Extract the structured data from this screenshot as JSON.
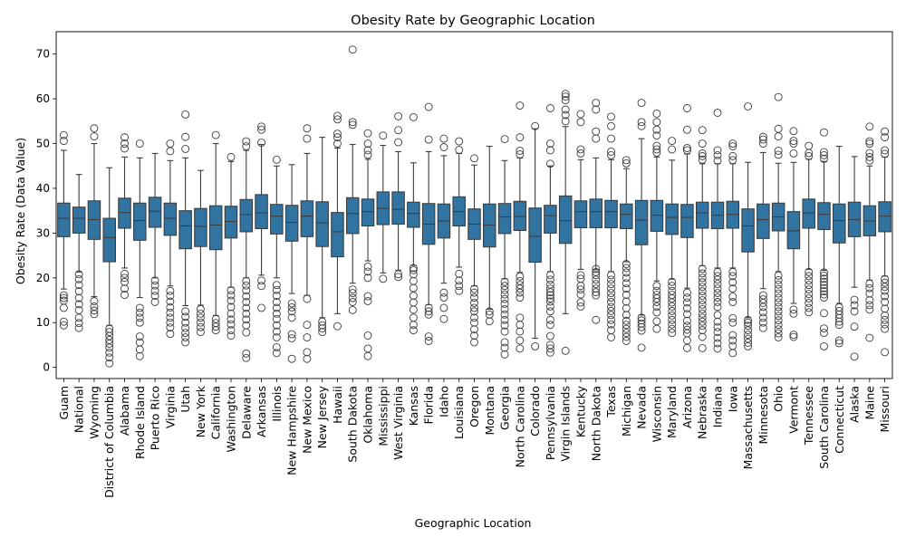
{
  "chart_data": {
    "type": "box",
    "title": "Obesity Rate by Geographic Location",
    "xlabel": "Geographic Location",
    "ylabel": "Obesity Rate (Data Value)",
    "ylim": [
      -2.5,
      75
    ],
    "yticks": [
      0,
      10,
      20,
      30,
      40,
      50,
      60,
      70
    ],
    "grid": false,
    "color": "#3274a1",
    "categories": [
      "Guam",
      "National",
      "Wyoming",
      "District of Columbia",
      "Alabama",
      "Rhode Island",
      "Puerto Rico",
      "Virginia",
      "Utah",
      "New York",
      "California",
      "Washington",
      "Delaware",
      "Arkansas",
      "Illinois",
      "New Hampshire",
      "New Mexico",
      "New Jersey",
      "Hawaii",
      "South Dakota",
      "Oklahoma",
      "Mississippi",
      "West Virginia",
      "Kansas",
      "Florida",
      "Idaho",
      "Louisiana",
      "Oregon",
      "Montana",
      "Georgia",
      "North Carolina",
      "Colorado",
      "Pennsylvania",
      "Virgin Islands",
      "Kentucky",
      "North Dakota",
      "Texas",
      "Michigan",
      "Nevada",
      "Wisconsin",
      "Maryland",
      "Arizona",
      "Nebraska",
      "Indiana",
      "Iowa",
      "Massachusetts",
      "Minnesota",
      "Ohio",
      "Vermont",
      "Tennessee",
      "South Carolina",
      "Connecticut",
      "Alaska",
      "Maine",
      "Missouri"
    ],
    "boxes": [
      {
        "q1": 29.2,
        "median": 33.3,
        "q3": 36.7,
        "whislo": 17.5,
        "whishi": 48.5,
        "fliers": [
          9.4,
          10.2,
          13.3,
          14.9,
          15.5,
          16.1,
          50.6,
          51.9
        ]
      },
      {
        "q1": 30.0,
        "median": 33.3,
        "q3": 35.8,
        "whislo": 21.3,
        "whishi": 43.1,
        "fliers": [
          8.8,
          9.9,
          11.1,
          12.8,
          14.1,
          15.5,
          17.0,
          18.4,
          19.7,
          20.8
        ]
      },
      {
        "q1": 28.6,
        "median": 33.0,
        "q3": 37.2,
        "whislo": 15.8,
        "whishi": 50.0,
        "fliers": [
          11.9,
          12.7,
          13.6,
          14.8,
          51.6,
          53.4
        ]
      },
      {
        "q1": 23.6,
        "median": 29.0,
        "q3": 33.3,
        "whislo": 9.4,
        "whishi": 44.6,
        "fliers": [
          0.9,
          2.2,
          3.3,
          4.4,
          5.3,
          6.1,
          7.0,
          7.9,
          8.6
        ]
      },
      {
        "q1": 31.1,
        "median": 34.6,
        "q3": 37.8,
        "whislo": 22.2,
        "whishi": 47.0,
        "fliers": [
          16.2,
          17.6,
          19.1,
          20.0,
          20.9,
          48.9,
          50.0,
          51.4
        ]
      },
      {
        "q1": 28.4,
        "median": 32.8,
        "q3": 36.7,
        "whislo": 15.6,
        "whishi": 46.8,
        "fliers": [
          2.5,
          4.0,
          5.6,
          6.9,
          10.0,
          11.1,
          12.2,
          13.3,
          50.0
        ]
      },
      {
        "q1": 31.3,
        "median": 34.9,
        "q3": 38.0,
        "whislo": 20.0,
        "whishi": 47.8,
        "fliers": [
          14.6,
          16.0,
          17.1,
          18.3,
          19.4
        ]
      },
      {
        "q1": 29.5,
        "median": 33.3,
        "q3": 36.7,
        "whislo": 18.2,
        "whishi": 46.2,
        "fliers": [
          7.5,
          8.9,
          10.0,
          11.1,
          12.2,
          13.4,
          14.7,
          16.0,
          17.1,
          48.3,
          50.0
        ]
      },
      {
        "q1": 26.5,
        "median": 31.6,
        "q3": 35.0,
        "whislo": 13.8,
        "whishi": 46.8,
        "fliers": [
          5.6,
          6.7,
          7.7,
          8.8,
          10.0,
          11.3,
          12.5,
          48.8,
          51.5,
          56.5
        ]
      },
      {
        "q1": 27.0,
        "median": 31.5,
        "q3": 35.5,
        "whislo": 13.9,
        "whishi": 44.0,
        "fliers": [
          7.9,
          9.0,
          10.0,
          11.1,
          12.0,
          13.0
        ]
      },
      {
        "q1": 26.3,
        "median": 31.8,
        "q3": 36.1,
        "whislo": 11.6,
        "whishi": 50.0,
        "fliers": [
          8.3,
          9.1,
          9.9,
          10.8,
          51.9
        ]
      },
      {
        "q1": 28.9,
        "median": 32.6,
        "q3": 36.0,
        "whislo": 17.9,
        "whishi": 46.0,
        "fliers": [
          7.1,
          8.3,
          9.6,
          10.7,
          12.0,
          13.5,
          14.9,
          16.1,
          17.2,
          47.0
        ]
      },
      {
        "q1": 30.3,
        "median": 34.1,
        "q3": 37.5,
        "whislo": 20.0,
        "whishi": 48.5,
        "fliers": [
          2.1,
          3.1,
          7.8,
          9.4,
          10.7,
          12.0,
          13.3,
          14.6,
          15.9,
          17.2,
          18.3,
          19.3,
          49.4,
          50.5
        ]
      },
      {
        "q1": 31.0,
        "median": 34.5,
        "q3": 38.6,
        "whislo": 20.6,
        "whishi": 49.8,
        "fliers": [
          13.3,
          18.2,
          19.4,
          50.2,
          53.1,
          53.8
        ]
      },
      {
        "q1": 29.8,
        "median": 33.8,
        "q3": 36.4,
        "whislo": 20.0,
        "whishi": 45.0,
        "fliers": [
          3.2,
          4.5,
          6.7,
          8.0,
          9.4,
          10.8,
          12.0,
          13.3,
          14.6,
          16.0,
          17.3,
          18.4,
          46.4
        ]
      },
      {
        "q1": 28.2,
        "median": 32.4,
        "q3": 36.2,
        "whislo": 16.5,
        "whishi": 45.3,
        "fliers": [
          1.9,
          6.5,
          7.4,
          11.1,
          12.5,
          13.4,
          14.3
        ]
      },
      {
        "q1": 29.2,
        "median": 33.8,
        "q3": 37.2,
        "whislo": 16.1,
        "whishi": 47.8,
        "fliers": [
          1.9,
          3.4,
          6.7,
          9.5,
          15.3,
          51.1,
          53.4
        ]
      },
      {
        "q1": 27.0,
        "median": 32.3,
        "q3": 37.0,
        "whislo": 11.1,
        "whishi": 51.4,
        "fliers": [
          7.9,
          8.7,
          9.4,
          10.2
        ]
      },
      {
        "q1": 24.7,
        "median": 30.3,
        "q3": 34.6,
        "whislo": 12.0,
        "whishi": 49.0,
        "fliers": [
          9.2,
          50.0,
          51.4,
          52.2,
          55.4,
          56.2
        ]
      },
      {
        "q1": 29.9,
        "median": 34.4,
        "q3": 37.9,
        "whislo": 18.8,
        "whishi": 49.8,
        "fliers": [
          12.8,
          14.6,
          15.5,
          16.6,
          17.4,
          54.2,
          54.8,
          71.0
        ]
      },
      {
        "q1": 31.6,
        "median": 34.8,
        "q3": 37.6,
        "whislo": 23.8,
        "whishi": 46.5,
        "fliers": [
          2.5,
          4.2,
          7.1,
          14.8,
          15.9,
          20.0,
          21.4,
          22.5,
          47.5,
          48.5,
          50.0,
          52.3
        ]
      },
      {
        "q1": 31.9,
        "median": 35.5,
        "q3": 39.2,
        "whislo": 21.1,
        "whishi": 49.6,
        "fliers": [
          19.8,
          51.8
        ]
      },
      {
        "q1": 32.0,
        "median": 35.3,
        "q3": 39.2,
        "whislo": 21.7,
        "whishi": 48.2,
        "fliers": [
          20.2,
          20.8,
          50.3,
          53.0,
          56.1
        ]
      },
      {
        "q1": 31.3,
        "median": 34.4,
        "q3": 36.9,
        "whislo": 22.8,
        "whishi": 45.7,
        "fliers": [
          8.3,
          9.5,
          11.1,
          12.9,
          14.5,
          16.0,
          17.7,
          19.3,
          20.8,
          21.7,
          22.2,
          55.9
        ]
      },
      {
        "q1": 27.5,
        "median": 32.0,
        "q3": 36.6,
        "whislo": 14.0,
        "whishi": 48.2,
        "fliers": [
          5.9,
          6.9,
          11.8,
          12.5,
          13.3,
          50.9,
          58.2
        ]
      },
      {
        "q1": 28.9,
        "median": 32.7,
        "q3": 36.5,
        "whislo": 18.8,
        "whishi": 47.3,
        "fliers": [
          10.8,
          13.3,
          15.6,
          16.7,
          49.2,
          51.1
        ]
      },
      {
        "q1": 31.6,
        "median": 34.8,
        "q3": 38.1,
        "whislo": 22.4,
        "whishi": 47.8,
        "fliers": [
          17.1,
          18.2,
          19.4,
          20.9,
          48.6,
          50.5
        ]
      },
      {
        "q1": 28.6,
        "median": 32.0,
        "q3": 35.4,
        "whislo": 18.2,
        "whishi": 45.2,
        "fliers": [
          5.6,
          7.1,
          8.5,
          10.0,
          11.1,
          12.5,
          13.3,
          14.4,
          15.6,
          16.7,
          17.5,
          46.7
        ]
      },
      {
        "q1": 26.9,
        "median": 31.8,
        "q3": 36.5,
        "whislo": 13.0,
        "whishi": 49.4,
        "fliers": [
          10.3,
          11.8,
          12.5
        ]
      },
      {
        "q1": 29.9,
        "median": 33.6,
        "q3": 36.6,
        "whislo": 19.8,
        "whishi": 46.2,
        "fliers": [
          2.9,
          4.4,
          5.6,
          8.0,
          9.4,
          10.6,
          11.8,
          13.0,
          14.2,
          15.3,
          16.3,
          17.3,
          18.2,
          19.1,
          51.0
        ]
      },
      {
        "q1": 30.6,
        "median": 33.7,
        "q3": 37.1,
        "whislo": 21.2,
        "whishi": 46.8,
        "fliers": [
          4.2,
          6.0,
          8.0,
          9.5,
          11.1,
          15.6,
          16.7,
          17.6,
          18.4,
          19.3,
          20.3,
          47.6,
          48.4,
          51.4,
          58.5
        ]
      },
      {
        "q1": 23.5,
        "median": 29.3,
        "q3": 35.6,
        "whislo": 6.5,
        "whishi": 53.3,
        "fliers": [
          4.7,
          53.9
        ]
      },
      {
        "q1": 30.0,
        "median": 33.9,
        "q3": 36.2,
        "whislo": 21.4,
        "whishi": 45.0,
        "fliers": [
          3.3,
          4.2,
          5.0,
          7.0,
          9.5,
          10.6,
          12.5,
          13.6,
          14.7,
          15.4,
          16.1,
          16.8,
          17.6,
          18.5,
          19.6,
          20.6,
          45.5,
          48.5,
          50.0,
          57.9
        ]
      },
      {
        "q1": 27.7,
        "median": 32.8,
        "q3": 38.3,
        "whislo": 12.0,
        "whishi": 53.8,
        "fliers": [
          3.7,
          55.0,
          56.4,
          57.6,
          59.7,
          60.5,
          61.1
        ]
      },
      {
        "q1": 31.2,
        "median": 34.8,
        "q3": 37.2,
        "whislo": 21.9,
        "whishi": 46.4,
        "fliers": [
          13.6,
          14.5,
          16.3,
          17.4,
          18.2,
          19.8,
          20.6,
          47.8,
          48.7,
          54.8,
          56.6
        ]
      },
      {
        "q1": 31.2,
        "median": 34.8,
        "q3": 37.6,
        "whislo": 21.8,
        "whishi": 46.8,
        "fliers": [
          10.6,
          16.1,
          16.8,
          17.6,
          18.6,
          19.6,
          20.6,
          21.3,
          22.0,
          51.1,
          52.7,
          57.6,
          59.1
        ]
      },
      {
        "q1": 31.2,
        "median": 34.8,
        "q3": 37.3,
        "whislo": 21.4,
        "whishi": 46.4,
        "fliers": [
          6.7,
          8.3,
          9.6,
          10.6,
          11.7,
          12.6,
          13.5,
          14.6,
          15.6,
          16.6,
          17.6,
          18.6,
          19.6,
          20.6,
          47.4,
          48.2,
          51.1,
          53.9,
          56.0
        ]
      },
      {
        "q1": 31.0,
        "median": 34.2,
        "q3": 36.5,
        "whislo": 23.6,
        "whishi": 44.4,
        "fliers": [
          5.9,
          6.8,
          7.7,
          8.6,
          9.5,
          10.4,
          11.7,
          13.2,
          14.7,
          16.2,
          17.6,
          18.8,
          20.0,
          21.2,
          22.2,
          23.1,
          45.6,
          46.3
        ]
      },
      {
        "q1": 27.4,
        "median": 32.9,
        "q3": 37.3,
        "whislo": 11.7,
        "whishi": 51.1,
        "fliers": [
          4.4,
          8.2,
          9.0,
          9.8,
          10.5,
          11.1,
          53.9,
          54.8,
          59.1
        ]
      },
      {
        "q1": 30.4,
        "median": 34.0,
        "q3": 37.3,
        "whislo": 19.3,
        "whishi": 47.0,
        "fliers": [
          8.6,
          10.3,
          12.3,
          13.6,
          14.6,
          15.4,
          16.2,
          17.1,
          18.2,
          48.0,
          48.7,
          49.5,
          51.8,
          53.1,
          54.8,
          56.7
        ]
      },
      {
        "q1": 29.7,
        "median": 33.5,
        "q3": 36.5,
        "whislo": 19.7,
        "whishi": 46.3,
        "fliers": [
          7.7,
          8.6,
          9.6,
          10.6,
          11.6,
          12.6,
          13.6,
          14.5,
          15.4,
          16.2,
          17.1,
          18.2,
          19.1,
          48.7,
          50.6
        ]
      },
      {
        "q1": 29.0,
        "median": 33.5,
        "q3": 36.4,
        "whislo": 17.7,
        "whishi": 47.7,
        "fliers": [
          4.3,
          6.0,
          7.6,
          8.4,
          9.3,
          10.4,
          11.9,
          13.2,
          14.5,
          15.6,
          16.7,
          48.5,
          49.0,
          53.1,
          57.9
        ]
      },
      {
        "q1": 31.1,
        "median": 34.5,
        "q3": 36.9,
        "whislo": 22.7,
        "whishi": 45.5,
        "fliers": [
          4.3,
          6.8,
          8.3,
          9.3,
          10.2,
          11.1,
          12.0,
          13.0,
          14.0,
          15.0,
          16.0,
          17.0,
          18.0,
          19.0,
          20.0,
          21.0,
          22.0,
          46.4,
          47.2,
          47.8,
          50.0,
          53.0
        ]
      },
      {
        "q1": 31.0,
        "median": 34.0,
        "q3": 36.9,
        "whislo": 22.2,
        "whishi": 45.5,
        "fliers": [
          4.2,
          5.4,
          6.6,
          7.9,
          9.0,
          10.2,
          11.7,
          13.5,
          14.6,
          15.6,
          16.6,
          17.6,
          18.6,
          19.6,
          20.4,
          21.3,
          46.2,
          47.4,
          48.5,
          56.9
        ]
      },
      {
        "q1": 31.1,
        "median": 34.2,
        "q3": 37.1,
        "whislo": 22.2,
        "whishi": 45.5,
        "fliers": [
          3.2,
          4.8,
          6.0,
          7.2,
          10.0,
          11.0,
          14.6,
          15.8,
          17.6,
          19.0,
          20.4,
          21.3,
          46.3,
          47.2,
          49.4,
          50.0
        ]
      },
      {
        "q1": 25.8,
        "median": 31.6,
        "q3": 35.4,
        "whislo": 11.1,
        "whishi": 45.8,
        "fliers": [
          4.7,
          5.5,
          6.4,
          7.3,
          8.3,
          9.3,
          10.0,
          10.6,
          58.3
        ]
      },
      {
        "q1": 28.8,
        "median": 33.0,
        "q3": 36.5,
        "whislo": 17.6,
        "whishi": 48.0,
        "fliers": [
          8.8,
          10.0,
          11.1,
          12.3,
          13.5,
          14.4,
          15.2,
          16.1,
          50.0,
          50.9,
          51.5
        ]
      },
      {
        "q1": 30.5,
        "median": 33.6,
        "q3": 36.7,
        "whislo": 21.4,
        "whishi": 45.6,
        "fliers": [
          6.7,
          7.6,
          8.5,
          9.5,
          10.5,
          11.5,
          12.5,
          13.5,
          14.5,
          15.5,
          16.5,
          17.5,
          18.5,
          19.5,
          20.5,
          47.5,
          48.4,
          51.6,
          53.3,
          60.4
        ]
      },
      {
        "q1": 26.5,
        "median": 30.5,
        "q3": 34.8,
        "whislo": 14.3,
        "whishi": 45.8,
        "fliers": [
          6.8,
          7.3,
          12.0,
          12.9,
          47.8,
          50.0,
          50.6,
          52.8
        ]
      },
      {
        "q1": 31.1,
        "median": 34.5,
        "q3": 37.6,
        "whislo": 21.9,
        "whishi": 46.5,
        "fliers": [
          12.3,
          13.3,
          14.4,
          15.4,
          16.4,
          17.4,
          18.4,
          19.4,
          20.4,
          21.3,
          47.2,
          47.9,
          49.5
        ]
      },
      {
        "q1": 30.8,
        "median": 34.2,
        "q3": 36.8,
        "whislo": 21.7,
        "whishi": 46.0,
        "fliers": [
          4.7,
          7.7,
          8.7,
          12.1,
          15.6,
          16.3,
          17.0,
          17.7,
          18.4,
          19.1,
          19.8,
          20.5,
          21.2,
          46.6,
          47.4,
          48.1,
          52.5
        ]
      },
      {
        "q1": 27.8,
        "median": 32.8,
        "q3": 36.5,
        "whislo": 14.3,
        "whishi": 49.4,
        "fliers": [
          5.4,
          6.0,
          9.5,
          10.2,
          11.0,
          11.8,
          12.6,
          13.4
        ]
      },
      {
        "q1": 29.2,
        "median": 33.0,
        "q3": 36.9,
        "whislo": 17.9,
        "whishi": 47.1,
        "fliers": [
          2.4,
          9.1,
          12.5,
          13.9,
          15.1
        ]
      },
      {
        "q1": 29.4,
        "median": 32.7,
        "q3": 36.1,
        "whislo": 19.5,
        "whishi": 45.0,
        "fliers": [
          6.6,
          12.9,
          13.9,
          15.0,
          16.5,
          17.7,
          18.7,
          46.2,
          47.0,
          47.9,
          50.0,
          50.5,
          53.8
        ]
      },
      {
        "q1": 30.3,
        "median": 33.8,
        "q3": 37.0,
        "whislo": 20.4,
        "whishi": 47.0,
        "fliers": [
          3.4,
          8.6,
          9.6,
          10.6,
          11.6,
          13.1,
          14.6,
          15.9,
          17.1,
          18.0,
          18.9,
          19.7,
          47.7,
          48.5,
          51.4,
          52.7
        ]
      }
    ]
  }
}
